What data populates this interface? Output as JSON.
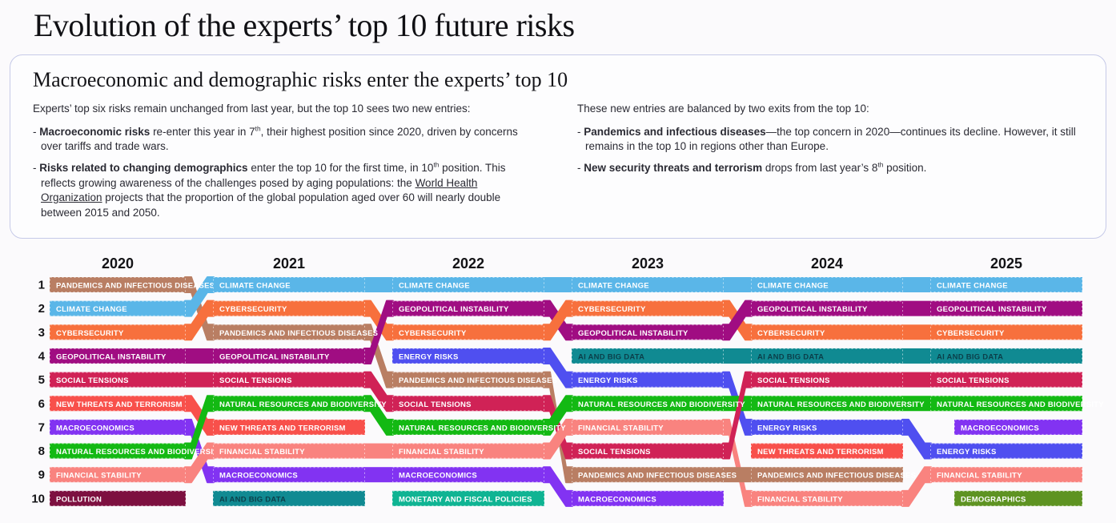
{
  "header": {
    "title": "Evolution of the experts’ top 10 future risks"
  },
  "info_box": {
    "heading": "Macroeconomic and demographic risks enter the experts’ top 10",
    "columns": [
      {
        "intro": "Experts’ top six risks remain unchanged from last year, but the top 10 sees two new entries:",
        "bullets": [
          {
            "parts": [
              {
                "b": "Macroeconomic risks"
              },
              {
                "t": " re-enter this year in 7"
              },
              {
                "sup": "th"
              },
              {
                "t": ", their highest position since 2020, driven by concerns over tariffs and trade wars."
              }
            ]
          },
          {
            "parts": [
              {
                "b": "Risks related to changing demographics"
              },
              {
                "t": " enter the top 10 for the first time, in 10"
              },
              {
                "sup": "th"
              },
              {
                "t": " position. This reflects growing awareness of the challenges posed by aging populations: the "
              },
              {
                "u": "World Health Organization"
              },
              {
                "t": " projects that the proportion of the global population aged over 60 will nearly double between 2015 and 2050."
              }
            ]
          }
        ]
      },
      {
        "intro": "These new entries are balanced by two exits from the top 10:",
        "bullets": [
          {
            "parts": [
              {
                "b": "Pandemics and infectious diseases"
              },
              {
                "t": "—the top concern in 2020—continues its decline. However, it still remains in the top 10 in regions other than Europe."
              }
            ]
          },
          {
            "parts": [
              {
                "b": "New security threats and terrorism"
              },
              {
                "t": " drops from last year’s 8"
              },
              {
                "sup": "th"
              },
              {
                "t": " position."
              }
            ]
          }
        ]
      }
    ]
  },
  "chart_data": {
    "type": "bump",
    "title": "Evolution of the experts’ top 10 future risks",
    "years": [
      "2020",
      "2021",
      "2022",
      "2023",
      "2024",
      "2025"
    ],
    "rank_axis": [
      "1",
      "2",
      "3",
      "4",
      "5",
      "6",
      "7",
      "8",
      "9",
      "10"
    ],
    "risks": {
      "pandemics": {
        "label": "PANDEMICS AND INFECTIOUS DISEASES",
        "color": "#b97e63"
      },
      "climate": {
        "label": "CLIMATE CHANGE",
        "color": "#5ab6e8"
      },
      "cybersecurity": {
        "label": "CYBERSECURITY",
        "color": "#f7703d"
      },
      "geopolitical": {
        "label": "GEOPOLITICAL INSTABILITY",
        "color": "#a00d82"
      },
      "social": {
        "label": "SOCIAL TENSIONS",
        "color": "#d02256"
      },
      "terrorism": {
        "label": "NEW THREATS AND TERRORISM",
        "color": "#f8504b"
      },
      "macroeconomics": {
        "label": "MACROECONOMICS",
        "color": "#8233f2"
      },
      "natural": {
        "label": "NATURAL RESOURCES AND BIODIVERSITY",
        "color": "#13b913"
      },
      "financial": {
        "label": "FINANCIAL STABILITY",
        "color": "#f9837f"
      },
      "pollution": {
        "label": "POLLUTION",
        "color": "#7d1040"
      },
      "ai": {
        "label": "AI AND BIG DATA",
        "color": "#108a92",
        "text_color": "#0b3f4a"
      },
      "energy": {
        "label": "ENERGY RISKS",
        "color": "#4f4ff0"
      },
      "monetary": {
        "label": "MONETARY AND FISCAL POLICIES",
        "color": "#0fb493"
      },
      "demographics": {
        "label": "DEMOGRAPHICS",
        "color": "#5e9322"
      }
    },
    "rankings": {
      "2020": [
        "pandemics",
        "climate",
        "cybersecurity",
        "geopolitical",
        "social",
        "terrorism",
        "macroeconomics",
        "natural",
        "financial",
        "pollution"
      ],
      "2021": [
        "climate",
        "cybersecurity",
        "pandemics",
        "geopolitical",
        "social",
        "natural",
        "terrorism",
        "financial",
        "macroeconomics",
        "ai"
      ],
      "2022": [
        "climate",
        "geopolitical",
        "cybersecurity",
        "energy",
        "pandemics",
        "social",
        "natural",
        "financial",
        "macroeconomics",
        "monetary"
      ],
      "2023": [
        "climate",
        "cybersecurity",
        "geopolitical",
        "ai",
        "energy",
        "natural",
        "financial",
        "social",
        "pandemics",
        "macroeconomics"
      ],
      "2024": [
        "climate",
        "geopolitical",
        "cybersecurity",
        "ai",
        "social",
        "natural",
        "energy",
        "terrorism",
        "pandemics",
        "financial"
      ],
      "2025": [
        "climate",
        "geopolitical",
        "cybersecurity",
        "ai",
        "social",
        "natural",
        "macroeconomics",
        "energy",
        "financial",
        "demographics"
      ]
    },
    "indented_new_entries": [
      {
        "year": "2025",
        "risk": "macroeconomics"
      },
      {
        "year": "2025",
        "risk": "demographics"
      }
    ]
  }
}
